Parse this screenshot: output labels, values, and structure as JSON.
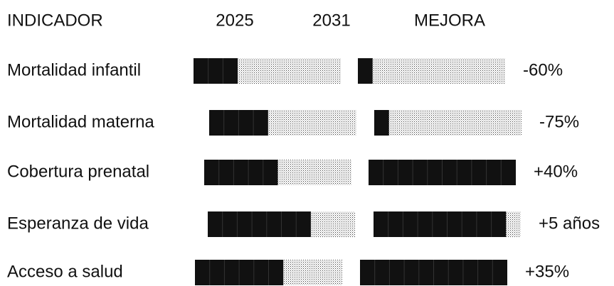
{
  "chart_data": {
    "type": "segmented-bar",
    "headers": [
      "INDICADOR",
      "2025",
      "2031",
      "MEJORA"
    ],
    "segments": 10,
    "rows": [
      {
        "label": "Mortalidad infantil",
        "v2025": 3,
        "v2031": 1,
        "change": "-60%"
      },
      {
        "label": "Mortalidad materna",
        "v2025": 4,
        "v2031": 1,
        "change": "-75%"
      },
      {
        "label": "Cobertura prenatal",
        "v2025": 5,
        "v2031": 10,
        "change": "+40%"
      },
      {
        "label": "Esperanza de vida",
        "v2025": 7,
        "v2031": 9,
        "change": "+5 años"
      },
      {
        "label": "Acceso a salud",
        "v2025": 6,
        "v2031": 10,
        "change": "+35%"
      }
    ]
  }
}
